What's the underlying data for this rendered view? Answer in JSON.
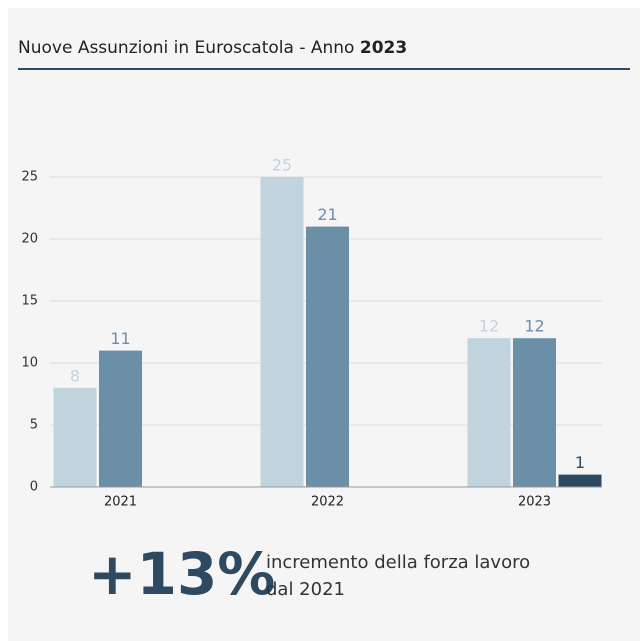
{
  "chart_data": {
    "type": "bar",
    "title": "Nuove Assunzioni in Euroscatola - Anno",
    "title_emphasis": "2023",
    "categories": [
      "2021",
      "2022",
      "2023"
    ],
    "series": [
      {
        "color": "#c1d4dd",
        "values": [
          8,
          25,
          12
        ]
      },
      {
        "color": "#6a8fa7",
        "values": [
          11,
          21,
          12
        ]
      },
      {
        "color": "#2e4a63",
        "values": [
          null,
          null,
          1
        ]
      }
    ],
    "ylim": [
      0,
      25
    ],
    "yticks": [
      0,
      5,
      10,
      15,
      20,
      25
    ],
    "grid": true,
    "kpi": {
      "value": "+13%",
      "text": [
        "incremento della forza lavoro",
        "dal 2021"
      ]
    }
  }
}
